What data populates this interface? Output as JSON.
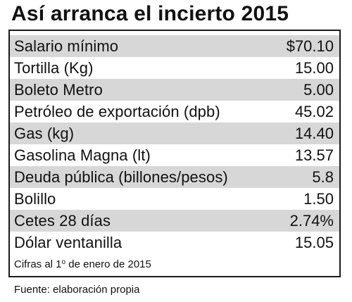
{
  "title": "Así arranca el incierto 2015",
  "rows": [
    {
      "label": "Salario mínimo",
      "value": "$70.10"
    },
    {
      "label": "Tortilla (Kg)",
      "value": "15.00"
    },
    {
      "label": "Boleto Metro",
      "value": "5.00"
    },
    {
      "label": "Petróleo de exportación (dpb)",
      "value": "45.02"
    },
    {
      "label": "Gas (kg)",
      "value": "14.40"
    },
    {
      "label": "Gasolina Magna (lt)",
      "value": "13.57"
    },
    {
      "label": "Deuda pública (billones/pesos)",
      "value": "5.8"
    },
    {
      "label": "Bolillo",
      "value": "1.50"
    },
    {
      "label": "Cetes 28 días",
      "value": "2.74%"
    },
    {
      "label": "Dólar ventanilla",
      "value": "15.05"
    }
  ],
  "note": {
    "prefix": "Cifras al 1",
    "superscript": "o",
    "suffix": " de enero de 2015"
  },
  "source": "Fuente: elaboración propia",
  "colors": {
    "shaded_row": "#d7d7d7",
    "text": "#111111",
    "border": "#1a1a1a"
  }
}
